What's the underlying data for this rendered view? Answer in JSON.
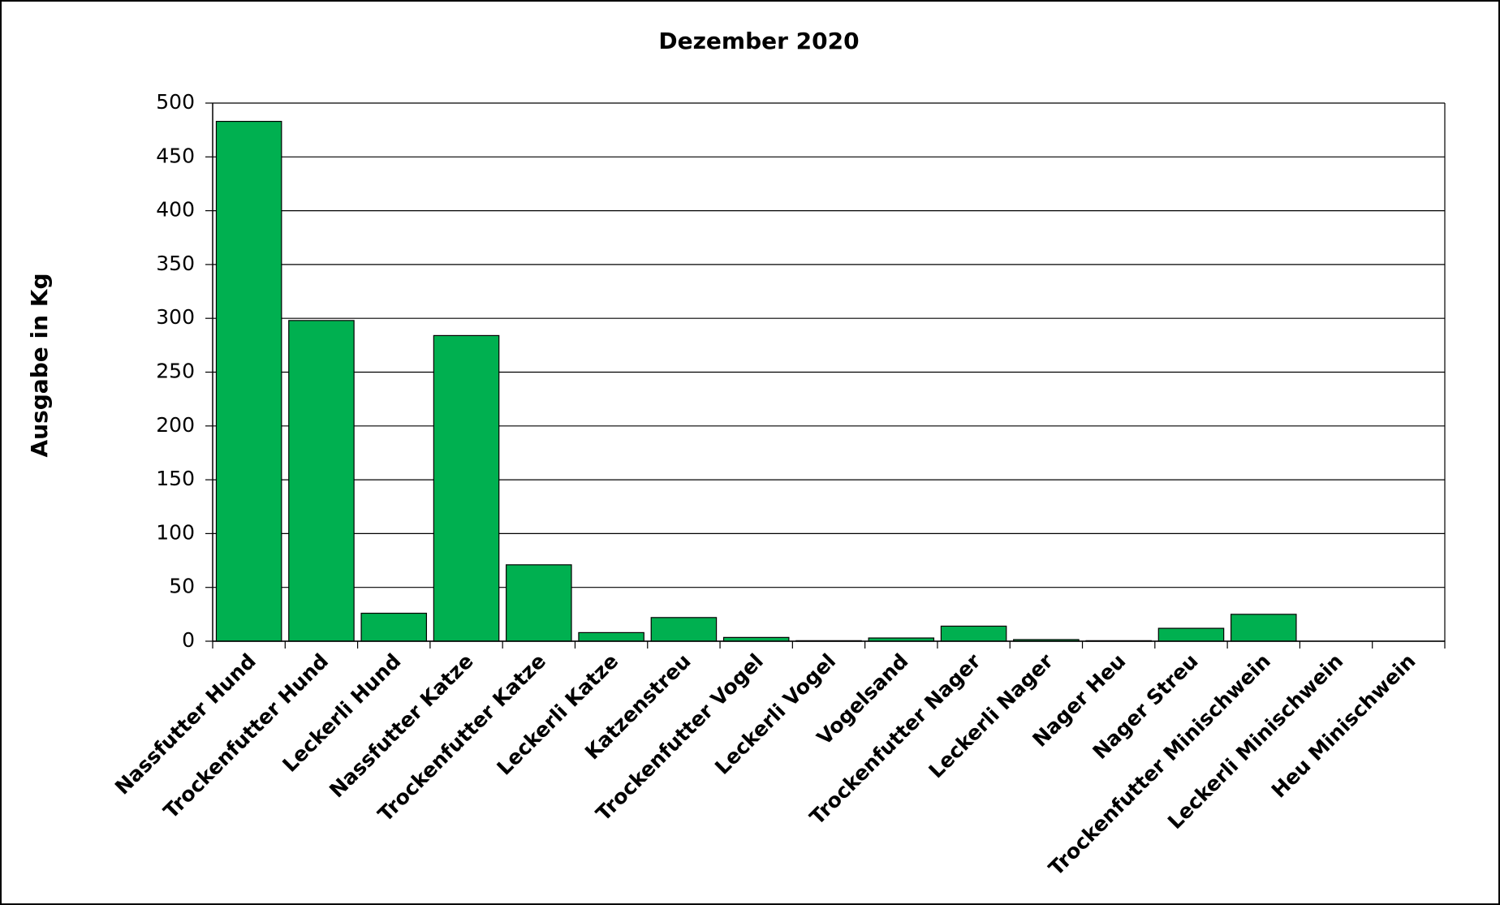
{
  "chart_data": {
    "type": "bar",
    "title": "Dezember 2020",
    "y_label": "Ausgabe in Kg",
    "categories": [
      "Nassfutter Hund",
      "Trockenfutter Hund",
      "Leckerli Hund",
      "Nassfutter Katze",
      "Trockenfutter Katze",
      "Leckerli Katze",
      "Katzenstreu",
      "Trockenfutter Vogel",
      "Leckerli Vogel",
      "Vogelsand",
      "Trockenfutter Nager",
      "Leckerli Nager",
      "Nager Heu",
      "Nager Streu",
      "Trockenfutter Minischwein",
      "Leckerli Minischwein",
      "Heu Minischwein"
    ],
    "values": [
      483,
      298,
      26,
      284,
      71,
      8,
      22,
      3.5,
      0.5,
      3,
      14,
      1.5,
      0.5,
      12,
      25,
      0,
      0
    ],
    "color": "#00b050",
    "ylim": [
      0,
      500
    ],
    "yticks": [
      0,
      50,
      100,
      150,
      200,
      250,
      300,
      350,
      400,
      450,
      500
    ],
    "grid": true
  }
}
